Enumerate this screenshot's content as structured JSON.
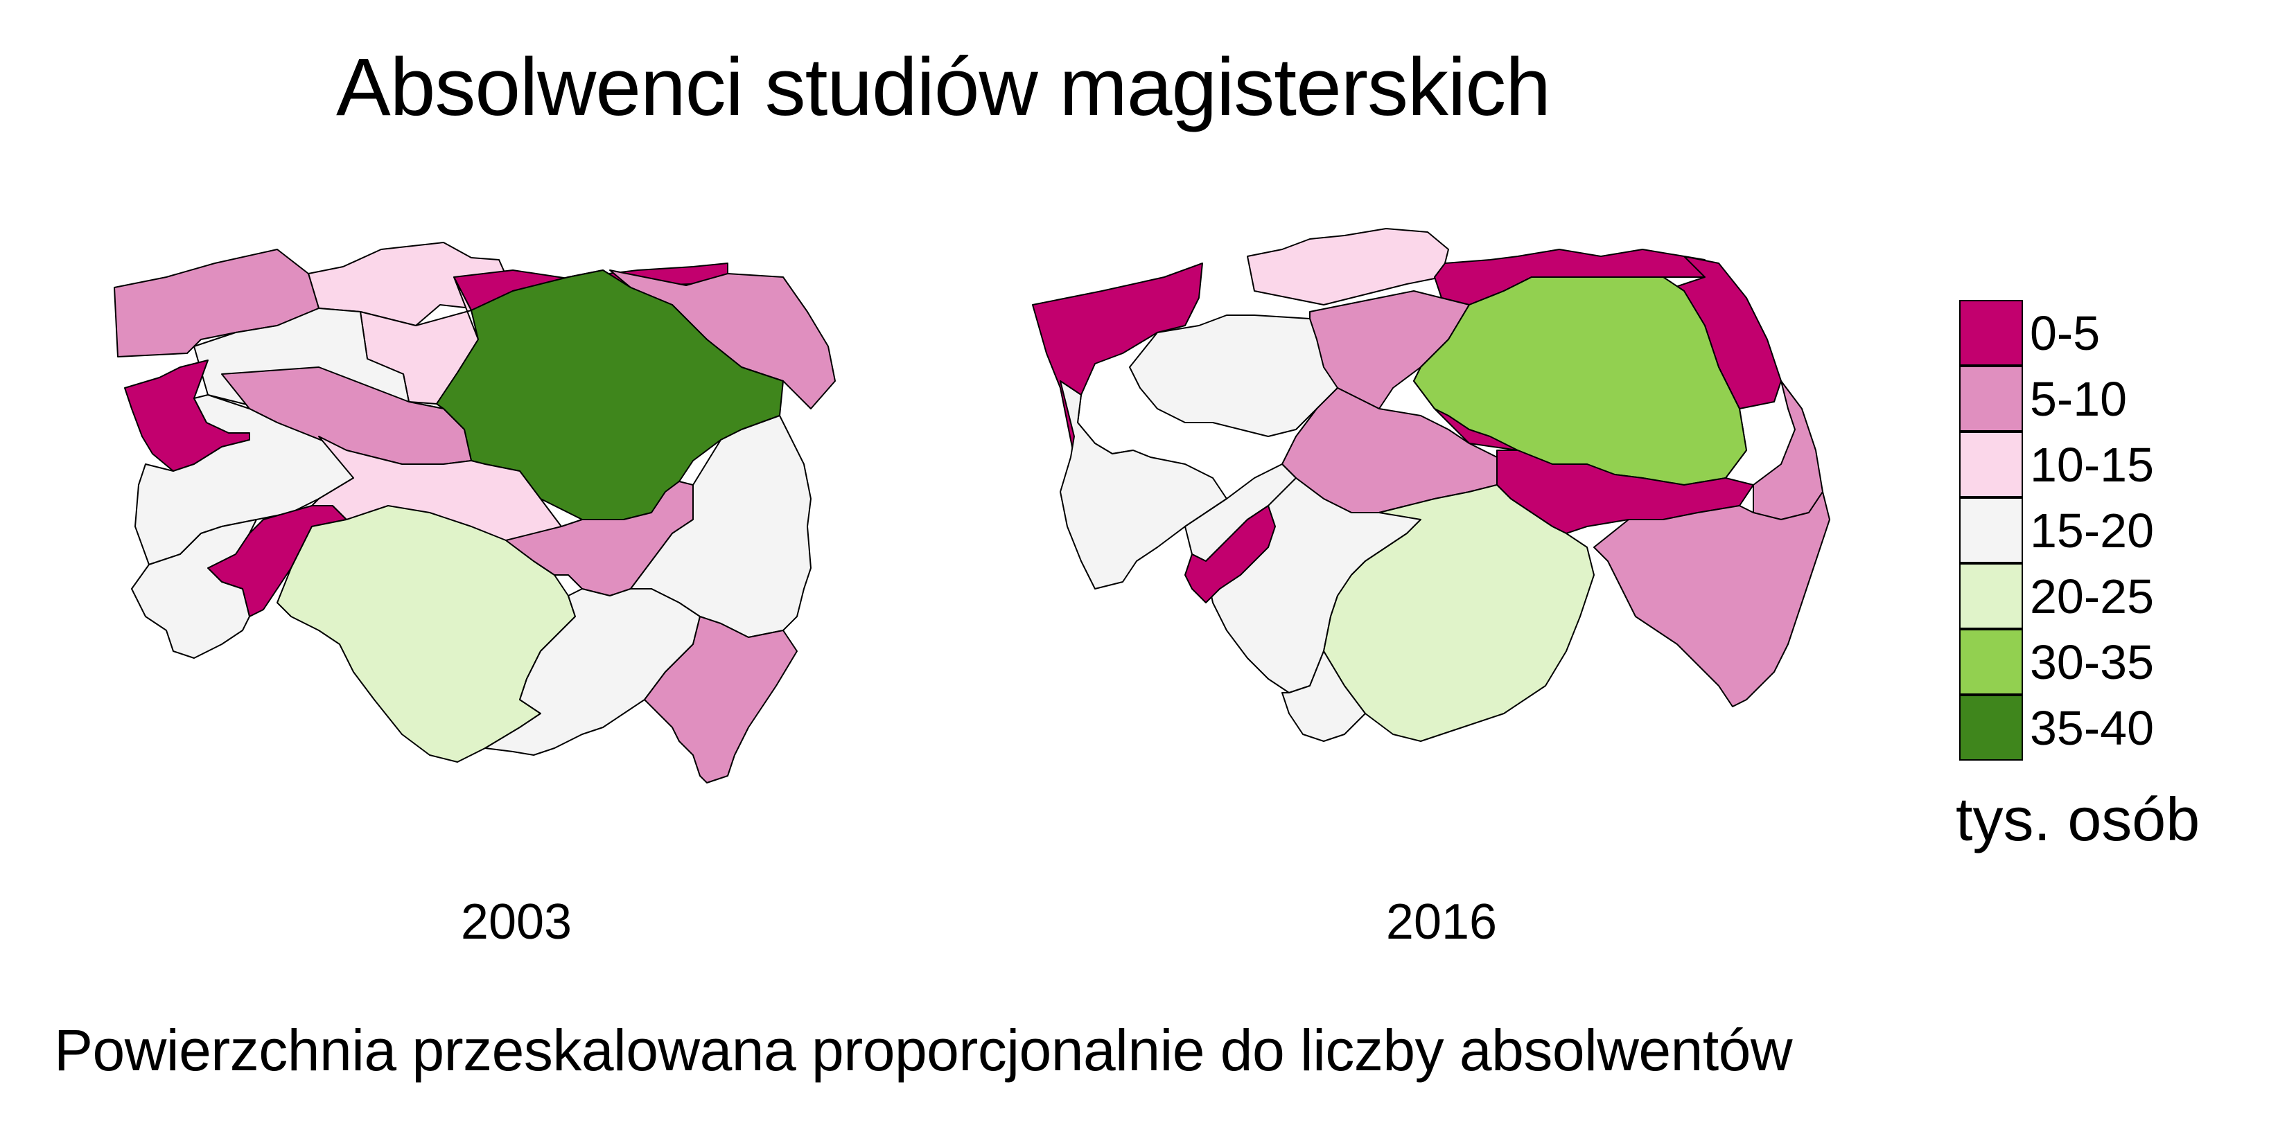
{
  "title": "Absolwenci studiów magisterskich",
  "subtitle": "Powierzchnia przeskalowana proporcjonalnie do liczby absolwentów",
  "legend": {
    "unit": "tys. osób",
    "items": [
      {
        "label": "0-5",
        "color": "#c2006e"
      },
      {
        "label": "5-10",
        "color": "#e08fbf"
      },
      {
        "label": "10-15",
        "color": "#fbd7ea"
      },
      {
        "label": "15-20",
        "color": "#f4f4f4"
      },
      {
        "label": "20-25",
        "color": "#e0f3c9"
      },
      {
        "label": "30-35",
        "color": "#92d050"
      },
      {
        "label": "35-40",
        "color": "#3f861c"
      }
    ]
  },
  "maps": [
    {
      "year": "2003",
      "regions_class": [
        "10-15",
        "0-5",
        "5-10",
        "5-10",
        "10-15",
        "15-20",
        "0-5",
        "35-40",
        "5-10",
        "15-20",
        "0-5",
        "15-20",
        "10-15",
        "20-25",
        "5-10",
        "15-20",
        "15-20",
        "5-10"
      ]
    },
    {
      "year": "2016",
      "regions_class": [
        "10-15",
        "0-5",
        "0-5",
        "5-10",
        "0-5",
        "15-20",
        "0-5",
        "30-35",
        "0-5",
        "15-20",
        "5-10",
        "15-20",
        "15-20",
        "0-5",
        "5-10",
        "20-25",
        "15-20",
        "5-10"
      ]
    }
  ]
}
